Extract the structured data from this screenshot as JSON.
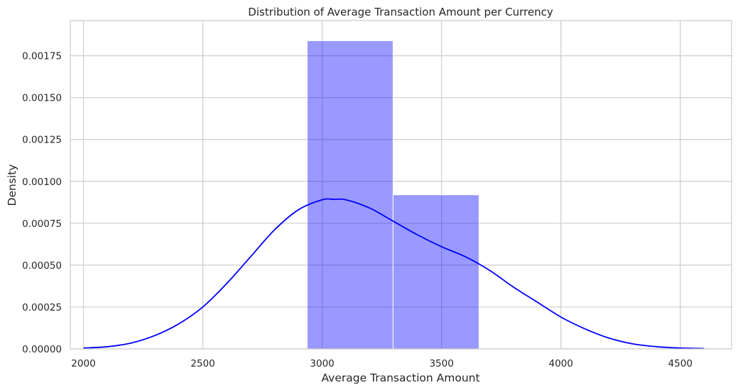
{
  "chart_data": {
    "type": "histogram",
    "title": "Distribution of Average Transaction Amount per Currency",
    "xlabel": "Average Transaction Amount",
    "ylabel": "Density",
    "xlim": [
      1945,
      4715
    ],
    "ylim": [
      0,
      0.00196
    ],
    "x_ticks": [
      2000,
      2500,
      3000,
      3500,
      4000,
      4500
    ],
    "x_tick_labels": [
      "2000",
      "2500",
      "3000",
      "3500",
      "4000",
      "4500"
    ],
    "y_ticks": [
      0,
      0.00025,
      0.0005,
      0.00075,
      0.001,
      0.00125,
      0.0015,
      0.00175
    ],
    "y_tick_labels": [
      "0.00000",
      "0.00025",
      "0.00050",
      "0.00075",
      "0.00100",
      "0.00125",
      "0.00150",
      "0.00175"
    ],
    "grid": true,
    "bars": [
      {
        "x0": 2937,
        "x1": 3297,
        "density": 0.00184
      },
      {
        "x0": 3297,
        "x1": 3657,
        "density": 0.00092
      }
    ],
    "kde": {
      "x": [
        2000,
        2100,
        2200,
        2300,
        2400,
        2500,
        2600,
        2700,
        2800,
        2900,
        3000,
        3050,
        3100,
        3200,
        3300,
        3400,
        3500,
        3600,
        3700,
        3800,
        3900,
        4000,
        4100,
        4200,
        4300,
        4400,
        4500,
        4600
      ],
      "y": [
        5e-06,
        1.3e-05,
        3.5e-05,
        8e-05,
        0.00015,
        0.00025,
        0.00039,
        0.00055,
        0.00071,
        0.00083,
        0.00089,
        0.0008925,
        0.00089,
        0.00084,
        0.00076,
        0.00068,
        0.00061,
        0.00055,
        0.00047,
        0.00037,
        0.00028,
        0.00019,
        0.00012,
        6.5e-05,
        3e-05,
        1.3e-05,
        5e-06,
        2e-06
      ]
    },
    "colors": {
      "bar_fill": "#0000ff",
      "bar_opacity": 0.4,
      "kde_line": "#0000ff",
      "grid": "#cccccc",
      "background": "#ffffff"
    }
  }
}
